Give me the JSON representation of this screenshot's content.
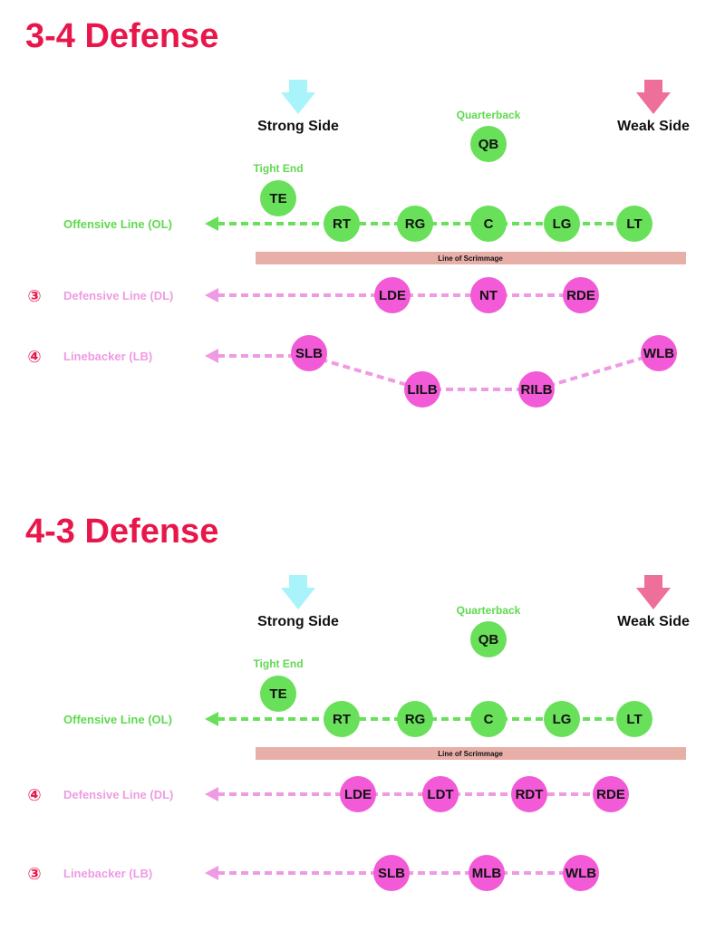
{
  "colors": {
    "title": "#e8174b",
    "offense": "#69e05a",
    "offense_label": "#5fd94f",
    "defense": "#f25ad7",
    "defense_label": "#ee9be3",
    "strong_arrow": "#a9f3fb",
    "weak_arrow": "#ee6f9a",
    "scrimmage": "#e8aea8",
    "number": "#e8174b",
    "text": "#111111"
  },
  "sections": [
    {
      "title": "3-4 Defense",
      "strong_side": "Strong Side",
      "weak_side": "Weak Side",
      "qb_caption": "Quarterback",
      "qb": "QB",
      "te_caption": "Tight  End",
      "te": "TE",
      "offensive_line_label": "Offensive Line (OL)",
      "offensive_line": [
        "RT",
        "RG",
        "C",
        "LG",
        "LT"
      ],
      "scrimmage_label": "Line of Scrimmage",
      "defensive_line_count": "③",
      "defensive_line_label": "Defensive Line (DL)",
      "defensive_line": [
        "LDE",
        "NT",
        "RDE"
      ],
      "linebacker_count": "④",
      "linebacker_label": "Linebacker (LB)",
      "linebackers": [
        "SLB",
        "LILB",
        "RILB",
        "WLB"
      ]
    },
    {
      "title": "4-3 Defense",
      "strong_side": "Strong Side",
      "weak_side": "Weak Side",
      "qb_caption": "Quarterback",
      "qb": "QB",
      "te_caption": "Tight  End",
      "te": "TE",
      "offensive_line_label": "Offensive Line (OL)",
      "offensive_line": [
        "RT",
        "RG",
        "C",
        "LG",
        "LT"
      ],
      "scrimmage_label": "Line of Scrimmage",
      "defensive_line_count": "④",
      "defensive_line_label": "Defensive Line (DL)",
      "defensive_line": [
        "LDE",
        "LDT",
        "RDT",
        "RDE"
      ],
      "linebacker_count": "③",
      "linebacker_label": "Linebacker (LB)",
      "linebackers": [
        "SLB",
        "MLB",
        "WLB"
      ]
    }
  ]
}
